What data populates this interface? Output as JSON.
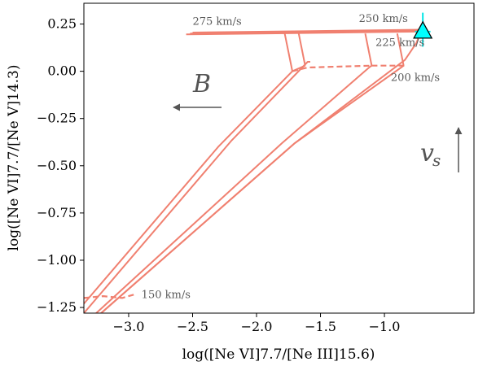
{
  "chart_data": {
    "type": "line",
    "title": "",
    "xlabel": "log([Ne VI]7.7/[Ne III]15.6)",
    "ylabel": "log([Ne VI]7.7/[Ne V]14.3)",
    "xlim": [
      -3.35,
      -0.3
    ],
    "ylim": [
      -1.28,
      0.36
    ],
    "xticks": [
      -3.0,
      -2.5,
      -2.0,
      -1.5,
      -1.0
    ],
    "xtick_labels": [
      "−3.0",
      "−2.5",
      "−2.0",
      "−1.5",
      "−1.0"
    ],
    "yticks": [
      0.25,
      0.0,
      -0.25,
      -0.5,
      -0.75,
      -1.0,
      -1.25
    ],
    "ytick_labels": [
      "0.25",
      "0.00",
      "−0.25",
      "−0.50",
      "−0.75",
      "−1.00",
      "−1.25"
    ],
    "grid": false,
    "line_color": "#f08070",
    "solid_tracks": [
      [
        [
          -3.35,
          -1.23
        ],
        [
          -2.3,
          -0.4
        ],
        [
          -1.72,
          0.0
        ],
        [
          -1.62,
          0.03
        ]
      ],
      [
        [
          -3.35,
          -1.28
        ],
        [
          -2.2,
          -0.37
        ],
        [
          -1.6,
          0.05
        ],
        [
          -1.58,
          0.05
        ]
      ],
      [
        [
          -3.35,
          -1.34
        ],
        [
          -1.8,
          -0.38
        ],
        [
          -1.12,
          0.02
        ],
        [
          -1.1,
          0.03
        ]
      ],
      [
        [
          -3.35,
          -1.36
        ],
        [
          -1.7,
          -0.38
        ],
        [
          -0.87,
          0.02
        ],
        [
          -0.85,
          0.03
        ]
      ],
      [
        [
          -3.35,
          -1.36
        ],
        [
          -1.7,
          -0.38
        ],
        [
          -0.84,
          0.06
        ],
        [
          -0.8,
          0.1
        ],
        [
          -0.75,
          0.15
        ],
        [
          -0.72,
          0.2
        ]
      ],
      [
        [
          -1.72,
          0.0
        ],
        [
          -1.78,
          0.2
        ]
      ],
      [
        [
          -1.62,
          0.03
        ],
        [
          -1.67,
          0.2
        ]
      ],
      [
        [
          -1.1,
          0.03
        ],
        [
          -1.15,
          0.2
        ]
      ],
      [
        [
          -0.85,
          0.03
        ],
        [
          -0.9,
          0.2
        ]
      ],
      [
        [
          -2.55,
          0.195
        ],
        [
          -0.7,
          0.21
        ]
      ],
      [
        [
          -2.52,
          0.2
        ],
        [
          -0.7,
          0.215
        ]
      ],
      [
        [
          -2.5,
          0.205
        ],
        [
          -0.7,
          0.22
        ]
      ]
    ],
    "dashed_tracks": [
      [
        [
          -3.35,
          -1.2
        ],
        [
          -3.2,
          -1.19
        ],
        [
          -3.05,
          -1.2
        ],
        [
          -2.95,
          -1.18
        ]
      ],
      [
        [
          -1.72,
          0.0
        ],
        [
          -1.6,
          0.02
        ],
        [
          -1.1,
          0.03
        ]
      ],
      [
        [
          -1.1,
          0.03
        ],
        [
          -0.82,
          0.03
        ]
      ],
      [
        [
          -1.6,
          0.21
        ],
        [
          -0.7,
          0.215
        ]
      ]
    ],
    "observed_point": {
      "x": -0.7,
      "y": 0.21,
      "xerr": 0.06,
      "yerr": [
        0.08,
        0.1
      ],
      "marker": "triangle",
      "fill": "#00ffff",
      "edge": "#000000",
      "errbar_color": "#00e5e5"
    },
    "annotations": [
      {
        "text": "275 km/s",
        "x": -2.5,
        "y": 0.245
      },
      {
        "text": "250 km/s",
        "x": -1.2,
        "y": 0.26
      },
      {
        "text": "225 km/s",
        "x": -1.07,
        "y": 0.135
      },
      {
        "text": "200 km/s",
        "x": -0.95,
        "y": -0.05
      },
      {
        "text": "150 km/s",
        "x": -2.9,
        "y": -1.2
      }
    ],
    "arrows": [
      {
        "label": "B",
        "direction": "left"
      },
      {
        "label": "v",
        "subscript": "s",
        "direction": "up"
      }
    ]
  }
}
